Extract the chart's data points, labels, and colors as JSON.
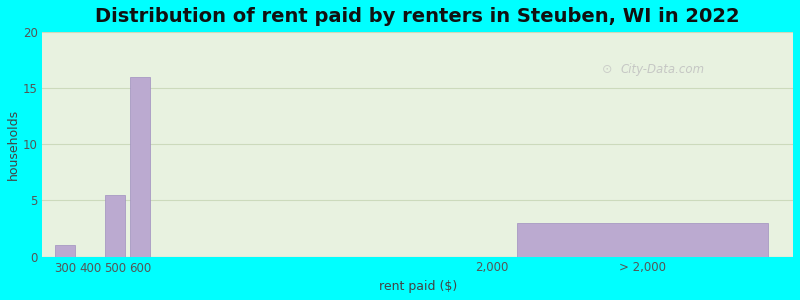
{
  "title": "Distribution of rent paid by renters in Steuben, WI in 2022",
  "xlabel": "rent paid ($)",
  "ylabel": "households",
  "bar_labels": [
    "300",
    "400",
    "500",
    "600",
    "2,000",
    "> 2,000"
  ],
  "bar_values": [
    1,
    0,
    5.5,
    16,
    0,
    3
  ],
  "bar_color": "#bbaad0",
  "bar_edge_color": "#a090c0",
  "ylim": [
    0,
    20
  ],
  "yticks": [
    0,
    5,
    10,
    15,
    20
  ],
  "bg_outer": "#00ffff",
  "bg_plot": "#e8f2e0",
  "title_fontsize": 14,
  "axis_label_fontsize": 9,
  "tick_fontsize": 8.5,
  "watermark_text": "City-Data.com",
  "grid_color": "#ccdabc",
  "title_fontweight": "bold",
  "bar_positions": [
    300,
    400,
    500,
    600,
    2000,
    2600
  ],
  "bar_widths": [
    80,
    80,
    80,
    80,
    80,
    1000
  ],
  "xlim": [
    210,
    3200
  ],
  "xtick_positions": [
    300,
    400,
    500,
    600,
    2000,
    2600
  ]
}
